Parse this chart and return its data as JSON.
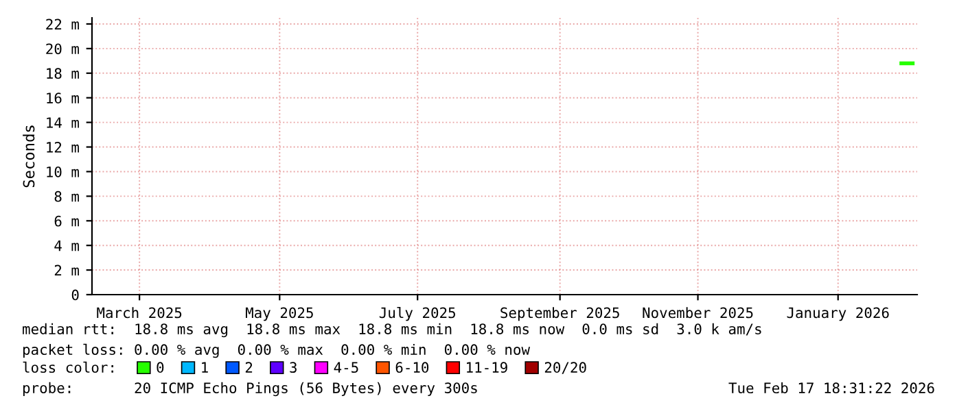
{
  "chart_data": {
    "type": "line",
    "ylabel": "Seconds",
    "x": [
      "2026-02-10",
      "2026-02-15"
    ],
    "series": [
      {
        "name": "0",
        "color": "#26ff00",
        "values": [
          18.8,
          18.8
        ]
      },
      {
        "name": "1",
        "color": "#00b8ff",
        "values": [
          null,
          null
        ]
      },
      {
        "name": "2",
        "color": "#0059ff",
        "values": [
          null,
          null
        ]
      },
      {
        "name": "3",
        "color": "#5e00ff",
        "values": [
          null,
          null
        ]
      },
      {
        "name": "4-5",
        "color": "#ff00ff",
        "values": [
          null,
          null
        ]
      },
      {
        "name": "6-10",
        "color": "#ff5500",
        "values": [
          null,
          null
        ]
      },
      {
        "name": "11-19",
        "color": "#ff0000",
        "values": [
          null,
          null
        ]
      },
      {
        "name": "20/20",
        "color": "#a10000",
        "values": [
          null,
          null
        ]
      }
    ],
    "legend_title": "loss color:",
    "legend": "bottom",
    "xlim": [
      "2025-02-17",
      "2026-02-17"
    ],
    "xticks": [
      {
        "value": "2025-03-10",
        "label": "March 2025"
      },
      {
        "value": "2025-05-11",
        "label": "May 2025"
      },
      {
        "value": "2025-07-11",
        "label": "July 2025"
      },
      {
        "value": "2025-09-12",
        "label": "September 2025"
      },
      {
        "value": "2025-11-12",
        "label": "November 2025"
      },
      {
        "value": "2026-01-13",
        "label": "January 2026"
      }
    ],
    "ylim": [
      0,
      22.5
    ],
    "yticks": [
      0,
      {
        "value": 2,
        "label": "2 m"
      },
      {
        "value": 4,
        "label": "4 m"
      },
      {
        "value": 6,
        "label": "6 m"
      },
      {
        "value": 8,
        "label": "8 m"
      },
      {
        "value": 10,
        "label": "10 m"
      },
      {
        "value": 12,
        "label": "12 m"
      },
      {
        "value": 14,
        "label": "14 m"
      },
      {
        "value": 16,
        "label": "16 m"
      },
      {
        "value": 18,
        "label": "18 m"
      },
      {
        "value": 20,
        "label": "20 m"
      },
      {
        "value": 22,
        "label": "22 m"
      }
    ],
    "grid": true,
    "annotations": [
      "median rtt:  18.8 ms avg  18.8 ms max  18.8 ms min  18.8 ms now  0.0 ms sd  3.0 k am/s",
      "packet loss: 0.00 % avg  0.00 % max  0.00 % min  0.00 % now",
      "probe:       20 ICMP Echo Pings (56 Bytes) every 300s",
      "Tue Feb 17 18:31:22 2026"
    ]
  }
}
